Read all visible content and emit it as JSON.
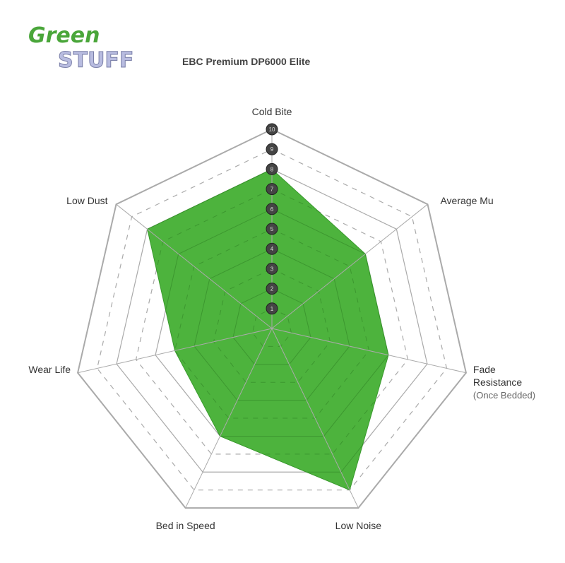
{
  "chart_data": {
    "type": "radar",
    "title": "EBC Premium DP6000 Elite",
    "logo_text": "Green Stuff",
    "axes": [
      "Cold Bite",
      "Average Mu",
      "Fade Resistance",
      "Low Noise",
      "Bed in Speed",
      "Wear Life",
      "Low Dust"
    ],
    "axis_sublabels": {
      "Fade Resistance": "(Once Bedded)"
    },
    "scale_ticks": [
      "1",
      "2",
      "3",
      "4",
      "5",
      "6",
      "7",
      "8",
      "9",
      "10"
    ],
    "range": [
      0,
      10
    ],
    "values": [
      8,
      6,
      6,
      9,
      6,
      5,
      8
    ],
    "fill_color": "#4db33d",
    "grid_color": "#aaaaaa",
    "tick_marker_color": "#444444"
  }
}
